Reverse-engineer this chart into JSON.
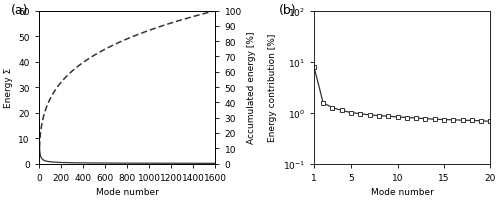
{
  "panel_a": {
    "xlabel": "Mode number",
    "ylabel_left": "Energy Σ",
    "ylabel_right": "Accumulated energy [%]",
    "xlim": [
      0,
      1600
    ],
    "ylim_left": [
      0,
      60
    ],
    "ylim_right": [
      0,
      100
    ],
    "xticks": [
      0,
      200,
      400,
      600,
      800,
      1000,
      1200,
      1400,
      1600
    ],
    "yticks_left": [
      0,
      10,
      20,
      30,
      40,
      50,
      60
    ],
    "yticks_right": [
      0,
      10,
      20,
      30,
      40,
      50,
      60,
      70,
      80,
      90,
      100
    ],
    "n_modes": 1600,
    "energy_scale": 22.0,
    "energy_exp": 0.75
  },
  "panel_b": {
    "xlabel": "Mode number",
    "ylabel": "Energy contribution [%]",
    "xlim": [
      1,
      20
    ],
    "ylim": [
      0.1,
      100
    ],
    "xticks": [
      1,
      5,
      10,
      15,
      20
    ],
    "yticks": [
      0.1,
      1.0,
      10.0,
      100.0
    ],
    "ytick_labels": [
      "10$^{-1}$",
      "10$^{0}$",
      "10$^{1}$",
      "10$^{2}$"
    ],
    "mode_numbers": [
      1,
      2,
      3,
      4,
      5,
      6,
      7,
      8,
      9,
      10,
      11,
      12,
      13,
      14,
      15,
      16,
      17,
      18,
      19,
      20
    ],
    "energy_values": [
      8.0,
      1.55,
      1.25,
      1.1,
      1.0,
      0.95,
      0.9,
      0.87,
      0.85,
      0.82,
      0.8,
      0.78,
      0.76,
      0.74,
      0.73,
      0.72,
      0.71,
      0.7,
      0.69,
      0.67
    ]
  },
  "label_a": "(a)",
  "label_b": "(b)",
  "line_color": "#333333",
  "background_color": "white",
  "tick_fontsize": 6.5,
  "label_fontsize": 7.0,
  "axis_label_fontsize": 6.5,
  "panel_label_fontsize": 9.0
}
